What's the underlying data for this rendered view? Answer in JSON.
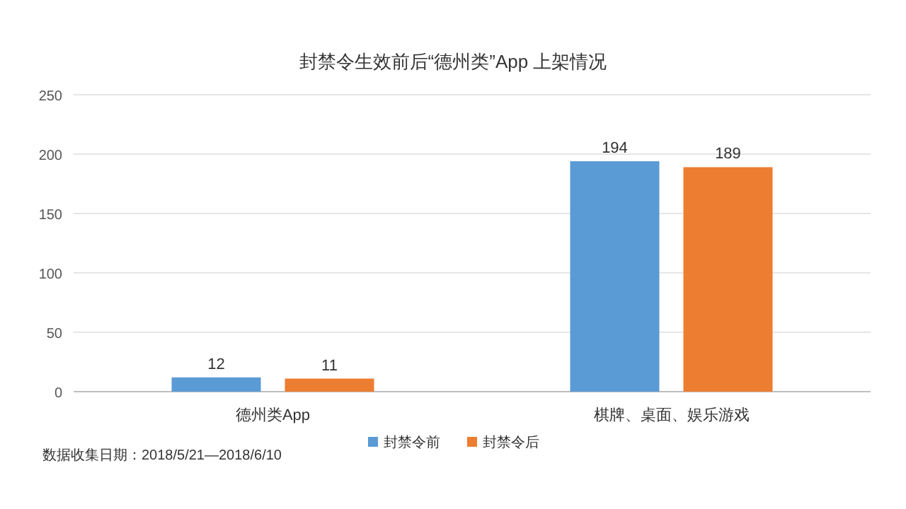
{
  "chart_data": {
    "type": "bar",
    "title": "封禁令生效前后“德州类”App 上架情况",
    "categories": [
      "德州类App",
      "棋牌、桌面、娱乐游戏"
    ],
    "series": [
      {
        "name": "封禁令前",
        "color": "#5b9bd5",
        "values": [
          12,
          194
        ]
      },
      {
        "name": "封禁令后",
        "color": "#ed7d31",
        "values": [
          11,
          189
        ]
      }
    ],
    "ylim": [
      0,
      250
    ],
    "yticks": [
      0,
      50,
      100,
      150,
      200,
      250
    ],
    "grid": "y",
    "legend": "bottom",
    "data_labels": true,
    "annotations": [
      "数据收集日期：2018/5/21—2018/6/10"
    ]
  }
}
